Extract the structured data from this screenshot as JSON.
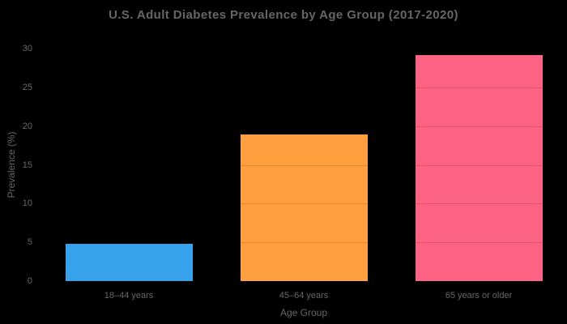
{
  "chart_data": {
    "type": "bar",
    "title": "U.S. Adult Diabetes Prevalence by Age Group (2017-2020)",
    "xlabel": "Age Group",
    "ylabel": "Prevalence (%)",
    "categories": [
      "18–44 years",
      "45–64 years",
      "65 years or older"
    ],
    "values": [
      4.8,
      18.9,
      29.2
    ],
    "bar_colors": [
      "#36A2EB",
      "#FF9F40",
      "#FF6384"
    ],
    "ylim": [
      0,
      30
    ],
    "yticks": [
      0,
      5,
      10,
      15,
      20,
      25,
      30
    ],
    "legend_position": "none",
    "grid": "horizontal gridlines drawn over bars only (dark overlay, invisible on black background)",
    "colors": {
      "background": "#000000",
      "text": "#666666",
      "gridline_overlay": "rgba(0,0,0,0.13)"
    }
  }
}
